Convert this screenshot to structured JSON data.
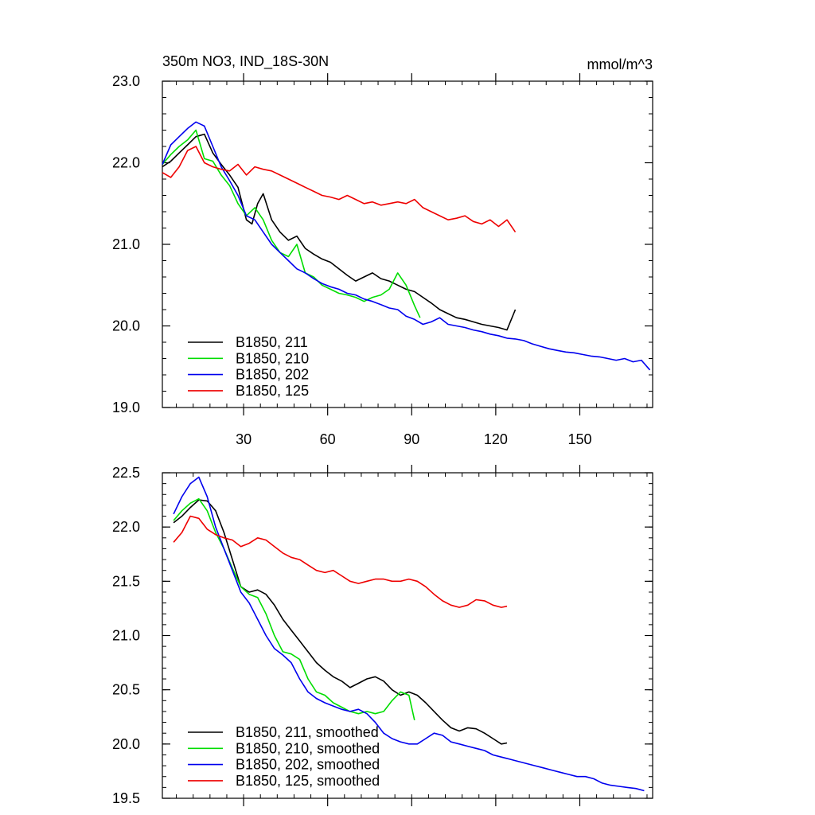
{
  "page": {
    "title": "350m NO3, IND_18S-30N",
    "units": "mmol/m^3"
  },
  "colors": {
    "s211": "#000000",
    "s210": "#00dd00",
    "s202": "#0000ee",
    "s125": "#ee0000"
  },
  "chart_data": [
    {
      "type": "line",
      "title": "350m NO3, IND_18S-30N",
      "units": "mmol/m^3",
      "xlim": [
        1,
        176
      ],
      "ylim": [
        19.0,
        23.0
      ],
      "xticks": [
        30,
        60,
        90,
        120,
        150
      ],
      "xtick_labels": [
        "30",
        "60",
        "90",
        "120",
        "150"
      ],
      "yticks": [
        19.0,
        20.0,
        21.0,
        22.0,
        23.0
      ],
      "ytick_labels": [
        "19.0",
        "20.0",
        "21.0",
        "22.0",
        "23.0"
      ],
      "grid": false,
      "legend_position": "bottom-left",
      "series": [
        {
          "name": "B1850, 211",
          "color": "#000000",
          "x": [
            1,
            4,
            7,
            10,
            13,
            16,
            19,
            22,
            25,
            28,
            31,
            33,
            35,
            37,
            40,
            43,
            46,
            49,
            52,
            55,
            58,
            61,
            64,
            67,
            70,
            73,
            76,
            79,
            82,
            85,
            88,
            91,
            94,
            97,
            100,
            103,
            106,
            109,
            112,
            115,
            118,
            121,
            124,
            127
          ],
          "y": [
            21.95,
            22.02,
            22.12,
            22.22,
            22.32,
            22.35,
            22.12,
            21.98,
            21.85,
            21.7,
            21.3,
            21.25,
            21.5,
            21.62,
            21.3,
            21.15,
            21.05,
            21.1,
            20.95,
            20.88,
            20.82,
            20.78,
            20.7,
            20.62,
            20.55,
            20.6,
            20.65,
            20.58,
            20.55,
            20.5,
            20.45,
            20.42,
            20.35,
            20.28,
            20.2,
            20.15,
            20.1,
            20.08,
            20.05,
            20.02,
            20.0,
            19.98,
            19.95,
            20.2
          ]
        },
        {
          "name": "B1850, 210",
          "color": "#00dd00",
          "x": [
            1,
            4,
            7,
            10,
            13,
            16,
            19,
            22,
            25,
            28,
            31,
            34,
            37,
            40,
            43,
            46,
            49,
            52,
            55,
            58,
            61,
            64,
            67,
            70,
            73,
            76,
            79,
            82,
            85,
            88,
            91,
            93
          ],
          "y": [
            21.98,
            22.1,
            22.2,
            22.28,
            22.4,
            22.05,
            22.02,
            21.85,
            21.72,
            21.5,
            21.35,
            21.45,
            21.3,
            21.05,
            20.9,
            20.85,
            21.0,
            20.65,
            20.6,
            20.5,
            20.45,
            20.4,
            20.38,
            20.35,
            20.3,
            20.35,
            20.38,
            20.45,
            20.65,
            20.5,
            20.25,
            20.1
          ]
        },
        {
          "name": "B1850, 202",
          "color": "#0000ee",
          "x": [
            1,
            4,
            7,
            10,
            13,
            16,
            19,
            22,
            25,
            28,
            31,
            34,
            37,
            40,
            43,
            46,
            49,
            52,
            55,
            58,
            61,
            64,
            67,
            70,
            73,
            76,
            79,
            82,
            85,
            88,
            91,
            94,
            97,
            100,
            103,
            106,
            109,
            112,
            115,
            118,
            121,
            124,
            127,
            130,
            133,
            136,
            139,
            142,
            145,
            148,
            151,
            154,
            157,
            160,
            163,
            166,
            169,
            172,
            175
          ],
          "y": [
            21.98,
            22.22,
            22.32,
            22.42,
            22.5,
            22.45,
            22.2,
            21.95,
            21.78,
            21.6,
            21.35,
            21.3,
            21.15,
            21.0,
            20.9,
            20.8,
            20.7,
            20.65,
            20.58,
            20.52,
            20.48,
            20.45,
            20.4,
            20.38,
            20.33,
            20.3,
            20.26,
            20.22,
            20.2,
            20.12,
            20.08,
            20.02,
            20.05,
            20.1,
            20.02,
            20.0,
            19.98,
            19.95,
            19.93,
            19.9,
            19.88,
            19.85,
            19.84,
            19.82,
            19.78,
            19.75,
            19.72,
            19.7,
            19.68,
            19.67,
            19.65,
            19.63,
            19.62,
            19.6,
            19.58,
            19.6,
            19.56,
            19.58,
            19.46
          ]
        },
        {
          "name": "B1850, 125",
          "color": "#ee0000",
          "x": [
            1,
            4,
            7,
            10,
            13,
            16,
            19,
            22,
            25,
            28,
            31,
            34,
            37,
            40,
            43,
            46,
            49,
            52,
            55,
            58,
            61,
            64,
            67,
            70,
            73,
            76,
            79,
            82,
            85,
            88,
            91,
            94,
            97,
            100,
            103,
            106,
            109,
            112,
            115,
            118,
            121,
            124,
            127
          ],
          "y": [
            21.88,
            21.82,
            21.95,
            22.15,
            22.2,
            22.0,
            21.95,
            21.92,
            21.9,
            21.98,
            21.85,
            21.95,
            21.92,
            21.9,
            21.85,
            21.8,
            21.75,
            21.7,
            21.65,
            21.6,
            21.58,
            21.55,
            21.6,
            21.55,
            21.5,
            21.52,
            21.48,
            21.5,
            21.52,
            21.5,
            21.55,
            21.45,
            21.4,
            21.35,
            21.3,
            21.32,
            21.35,
            21.28,
            21.25,
            21.3,
            21.22,
            21.3,
            21.15
          ]
        }
      ]
    },
    {
      "type": "line",
      "xlim": [
        1,
        176
      ],
      "ylim": [
        19.5,
        22.5
      ],
      "xticks": [
        30,
        60,
        90,
        120,
        150
      ],
      "yticks": [
        19.5,
        20.0,
        20.5,
        21.0,
        21.5,
        22.0,
        22.5
      ],
      "ytick_labels": [
        "19.5",
        "20.0",
        "20.5",
        "21.0",
        "21.5",
        "22.0",
        "22.5"
      ],
      "grid": false,
      "legend_position": "bottom-left",
      "series": [
        {
          "name": "B1850, 211, smoothed",
          "color": "#000000",
          "x": [
            5,
            8,
            11,
            14,
            17,
            20,
            23,
            26,
            29,
            32,
            35,
            38,
            41,
            44,
            47,
            50,
            53,
            56,
            59,
            62,
            65,
            68,
            71,
            74,
            77,
            80,
            83,
            86,
            89,
            92,
            95,
            98,
            101,
            104,
            107,
            110,
            113,
            116,
            119,
            122,
            124
          ],
          "y": [
            22.04,
            22.1,
            22.18,
            22.25,
            22.24,
            22.15,
            21.95,
            21.7,
            21.45,
            21.4,
            21.42,
            21.38,
            21.28,
            21.15,
            21.05,
            20.95,
            20.85,
            20.75,
            20.68,
            20.62,
            20.58,
            20.52,
            20.56,
            20.6,
            20.62,
            20.58,
            20.5,
            20.45,
            20.48,
            20.45,
            20.38,
            20.3,
            20.22,
            20.15,
            20.12,
            20.15,
            20.14,
            20.1,
            20.05,
            20.0,
            20.01
          ]
        },
        {
          "name": "B1850, 210, smoothed",
          "color": "#00dd00",
          "x": [
            5,
            8,
            11,
            14,
            17,
            20,
            23,
            26,
            29,
            32,
            35,
            38,
            41,
            44,
            47,
            50,
            53,
            56,
            59,
            62,
            65,
            68,
            71,
            74,
            77,
            80,
            83,
            86,
            89,
            91
          ],
          "y": [
            22.06,
            22.15,
            22.22,
            22.26,
            22.15,
            21.95,
            21.8,
            21.62,
            21.45,
            21.38,
            21.35,
            21.2,
            21.0,
            20.85,
            20.83,
            20.78,
            20.6,
            20.48,
            20.45,
            20.38,
            20.34,
            20.3,
            20.28,
            20.3,
            20.28,
            20.3,
            20.4,
            20.48,
            20.45,
            20.22
          ]
        },
        {
          "name": "B1850, 202, smoothed",
          "color": "#0000ee",
          "x": [
            5,
            8,
            11,
            14,
            17,
            20,
            23,
            26,
            29,
            32,
            35,
            38,
            41,
            44,
            47,
            50,
            53,
            56,
            59,
            62,
            65,
            68,
            71,
            74,
            77,
            80,
            83,
            86,
            89,
            92,
            95,
            98,
            101,
            104,
            107,
            110,
            113,
            116,
            119,
            122,
            125,
            128,
            131,
            134,
            137,
            140,
            143,
            146,
            149,
            152,
            155,
            158,
            161,
            164,
            167,
            170,
            173
          ],
          "y": [
            22.12,
            22.28,
            22.4,
            22.46,
            22.28,
            22.0,
            21.8,
            21.6,
            21.4,
            21.3,
            21.15,
            21.0,
            20.88,
            20.82,
            20.75,
            20.6,
            20.48,
            20.42,
            20.38,
            20.35,
            20.32,
            20.3,
            20.32,
            20.28,
            20.2,
            20.1,
            20.05,
            20.02,
            20.0,
            20.0,
            20.05,
            20.1,
            20.08,
            20.02,
            20.0,
            19.98,
            19.96,
            19.94,
            19.9,
            19.88,
            19.86,
            19.84,
            19.82,
            19.8,
            19.78,
            19.76,
            19.74,
            19.72,
            19.7,
            19.7,
            19.68,
            19.64,
            19.62,
            19.61,
            19.6,
            19.59,
            19.57
          ]
        },
        {
          "name": "B1850, 125, smoothed",
          "color": "#ee0000",
          "x": [
            5,
            8,
            11,
            14,
            17,
            20,
            23,
            26,
            29,
            32,
            35,
            38,
            41,
            44,
            47,
            50,
            53,
            56,
            59,
            62,
            65,
            68,
            71,
            74,
            77,
            80,
            83,
            86,
            89,
            92,
            95,
            98,
            101,
            104,
            107,
            110,
            113,
            116,
            119,
            122,
            124
          ],
          "y": [
            21.86,
            21.95,
            22.1,
            22.08,
            21.98,
            21.93,
            21.9,
            21.88,
            21.82,
            21.85,
            21.9,
            21.88,
            21.82,
            21.76,
            21.72,
            21.7,
            21.65,
            21.6,
            21.58,
            21.6,
            21.55,
            21.5,
            21.48,
            21.5,
            21.52,
            21.52,
            21.5,
            21.5,
            21.52,
            21.5,
            21.45,
            21.38,
            21.32,
            21.28,
            21.26,
            21.28,
            21.33,
            21.32,
            21.28,
            21.26,
            21.27
          ]
        }
      ]
    }
  ]
}
